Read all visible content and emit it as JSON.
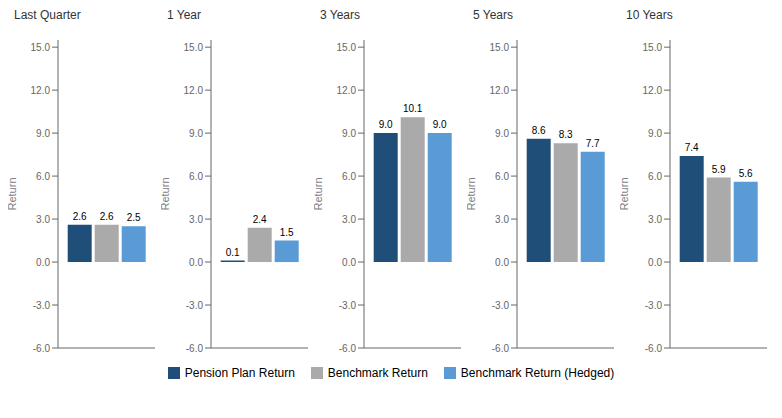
{
  "chart_data": [
    {
      "type": "bar",
      "title": "Last Quarter",
      "ylabel": "Return",
      "ylim": [
        -6.0,
        15.5
      ],
      "yticks": [
        {
          "value": -6.0,
          "label": "-6.0"
        },
        {
          "value": -3.0,
          "label": "-3.0"
        },
        {
          "value": 0.0,
          "label": "0.0"
        },
        {
          "value": 3.0,
          "label": "3.0"
        },
        {
          "value": 6.0,
          "label": "6.0"
        },
        {
          "value": 9.0,
          "label": "9.0"
        },
        {
          "value": 12.0,
          "label": "12.0"
        },
        {
          "value": 15.0,
          "label": "15.0"
        }
      ],
      "data_labels": true,
      "legend": "bottom",
      "series": [
        {
          "name": "Pension Plan Return",
          "color": "#1F4E79",
          "values": [
            2.6
          ],
          "value_labels": [
            "2.6"
          ]
        },
        {
          "name": "Benchmark Return",
          "color": "#AAAAAA",
          "values": [
            2.6
          ],
          "value_labels": [
            "2.6"
          ]
        },
        {
          "name": "Benchmark Return (Hedged)",
          "color": "#5B9BD5",
          "values": [
            2.5
          ],
          "value_labels": [
            "2.5"
          ]
        }
      ]
    },
    {
      "type": "bar",
      "title": "1 Year",
      "ylabel": "Return",
      "ylim": [
        -6.0,
        15.5
      ],
      "yticks": [
        {
          "value": -6.0,
          "label": "-6.0"
        },
        {
          "value": -3.0,
          "label": "-3.0"
        },
        {
          "value": 0.0,
          "label": "0.0"
        },
        {
          "value": 3.0,
          "label": "3.0"
        },
        {
          "value": 6.0,
          "label": "6.0"
        },
        {
          "value": 9.0,
          "label": "9.0"
        },
        {
          "value": 12.0,
          "label": "12.0"
        },
        {
          "value": 15.0,
          "label": "15.0"
        }
      ],
      "data_labels": true,
      "legend": "bottom",
      "series": [
        {
          "name": "Pension Plan Return",
          "color": "#1F4E79",
          "values": [
            0.1
          ],
          "value_labels": [
            "0.1"
          ]
        },
        {
          "name": "Benchmark Return",
          "color": "#AAAAAA",
          "values": [
            2.4
          ],
          "value_labels": [
            "2.4"
          ]
        },
        {
          "name": "Benchmark Return (Hedged)",
          "color": "#5B9BD5",
          "values": [
            1.5
          ],
          "value_labels": [
            "1.5"
          ]
        }
      ]
    },
    {
      "type": "bar",
      "title": "3 Years",
      "ylabel": "Return",
      "ylim": [
        -6.0,
        15.5
      ],
      "yticks": [
        {
          "value": -6.0,
          "label": "-6.0"
        },
        {
          "value": -3.0,
          "label": "-3.0"
        },
        {
          "value": 0.0,
          "label": "0.0"
        },
        {
          "value": 3.0,
          "label": "3.0"
        },
        {
          "value": 6.0,
          "label": "6.0"
        },
        {
          "value": 9.0,
          "label": "9.0"
        },
        {
          "value": 12.0,
          "label": "12.0"
        },
        {
          "value": 15.0,
          "label": "15.0"
        }
      ],
      "data_labels": true,
      "legend": "bottom",
      "series": [
        {
          "name": "Pension Plan Return",
          "color": "#1F4E79",
          "values": [
            9.0
          ],
          "value_labels": [
            "9.0"
          ]
        },
        {
          "name": "Benchmark Return",
          "color": "#AAAAAA",
          "values": [
            10.1
          ],
          "value_labels": [
            "10.1"
          ]
        },
        {
          "name": "Benchmark Return (Hedged)",
          "color": "#5B9BD5",
          "values": [
            9.0
          ],
          "value_labels": [
            "9.0"
          ]
        }
      ]
    },
    {
      "type": "bar",
      "title": "5 Years",
      "ylabel": "Return",
      "ylim": [
        -6.0,
        15.5
      ],
      "yticks": [
        {
          "value": -6.0,
          "label": "-6.0"
        },
        {
          "value": -3.0,
          "label": "-3.0"
        },
        {
          "value": 0.0,
          "label": "0.0"
        },
        {
          "value": 3.0,
          "label": "3.0"
        },
        {
          "value": 6.0,
          "label": "6.0"
        },
        {
          "value": 9.0,
          "label": "9.0"
        },
        {
          "value": 12.0,
          "label": "12.0"
        },
        {
          "value": 15.0,
          "label": "15.0"
        }
      ],
      "data_labels": true,
      "legend": "bottom",
      "series": [
        {
          "name": "Pension Plan Return",
          "color": "#1F4E79",
          "values": [
            8.6
          ],
          "value_labels": [
            "8.6"
          ]
        },
        {
          "name": "Benchmark Return",
          "color": "#AAAAAA",
          "values": [
            8.3
          ],
          "value_labels": [
            "8.3"
          ]
        },
        {
          "name": "Benchmark Return (Hedged)",
          "color": "#5B9BD5",
          "values": [
            7.7
          ],
          "value_labels": [
            "7.7"
          ]
        }
      ]
    },
    {
      "type": "bar",
      "title": "10 Years",
      "ylabel": "Return",
      "ylim": [
        -6.0,
        15.5
      ],
      "yticks": [
        {
          "value": -6.0,
          "label": "-6.0"
        },
        {
          "value": -3.0,
          "label": "-3.0"
        },
        {
          "value": 0.0,
          "label": "0.0"
        },
        {
          "value": 3.0,
          "label": "3.0"
        },
        {
          "value": 6.0,
          "label": "6.0"
        },
        {
          "value": 9.0,
          "label": "9.0"
        },
        {
          "value": 12.0,
          "label": "12.0"
        },
        {
          "value": 15.0,
          "label": "15.0"
        }
      ],
      "data_labels": true,
      "legend": "bottom",
      "series": [
        {
          "name": "Pension Plan Return",
          "color": "#1F4E79",
          "values": [
            7.4
          ],
          "value_labels": [
            "7.4"
          ]
        },
        {
          "name": "Benchmark Return",
          "color": "#AAAAAA",
          "values": [
            5.9
          ],
          "value_labels": [
            "5.9"
          ]
        },
        {
          "name": "Benchmark Return (Hedged)",
          "color": "#5B9BD5",
          "values": [
            5.6
          ],
          "value_labels": [
            "5.6"
          ]
        }
      ]
    }
  ]
}
